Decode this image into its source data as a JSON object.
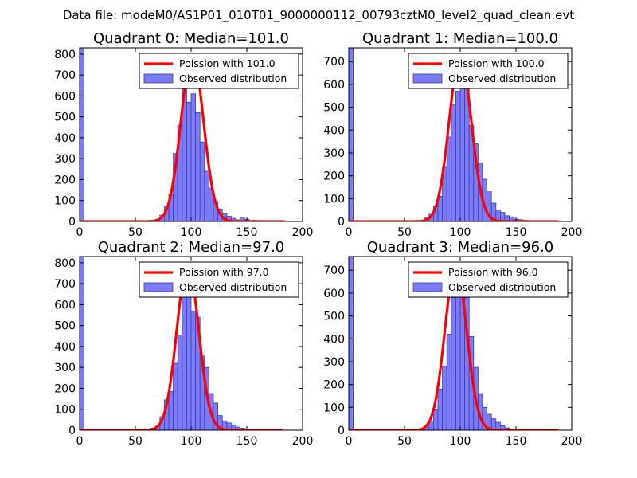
{
  "title": "Data file: modeM0/AS1P01_010T01_9000000112_00793cztM0_level2_quad_clean.evt",
  "colors": {
    "fit": "#ff0000",
    "hist_fill": "#7b7bf7",
    "hist_edge": "#3b3bb0",
    "axes": "#000000"
  },
  "chart_data": [
    {
      "type": "bar",
      "title": "Quadrant 0: Median=101.0",
      "median": 101,
      "peak": 800,
      "xlim": [
        0,
        200
      ],
      "ylim": [
        0,
        830
      ],
      "xticks": [
        0,
        50,
        100,
        150,
        200
      ],
      "yticks": [
        0,
        100,
        200,
        300,
        400,
        500,
        600,
        700,
        800
      ],
      "fit_end": 184,
      "legend": {
        "fit_label": "Poission with 101.0",
        "hist_label": "Observed distribution",
        "loc": "upper right"
      },
      "hist_edges": [
        0,
        4,
        8,
        12,
        16,
        20,
        24,
        28,
        32,
        36,
        40,
        44,
        48,
        52,
        56,
        60,
        64,
        68,
        72,
        76,
        80,
        84,
        88,
        92,
        96,
        100,
        104,
        108,
        112,
        116,
        120,
        124,
        128,
        132,
        136,
        140,
        144,
        148,
        152,
        156,
        160,
        164,
        168,
        172,
        176,
        180,
        184
      ],
      "hist_counts": [
        830,
        0,
        0,
        0,
        0,
        0,
        0,
        0,
        0,
        0,
        0,
        0,
        0,
        0,
        0,
        0,
        5,
        10,
        30,
        70,
        130,
        325,
        460,
        660,
        570,
        610,
        520,
        380,
        240,
        160,
        95,
        60,
        40,
        25,
        15,
        8,
        20,
        10,
        5,
        5,
        3,
        2,
        1,
        0,
        0,
        0
      ]
    },
    {
      "type": "bar",
      "title": "Quadrant 1: Median=100.0",
      "median": 100,
      "peak": 720,
      "xlim": [
        0,
        200
      ],
      "ylim": [
        0,
        760
      ],
      "xticks": [
        0,
        50,
        100,
        150,
        200
      ],
      "yticks": [
        0,
        100,
        200,
        300,
        400,
        500,
        600,
        700
      ],
      "fit_end": 188,
      "legend": {
        "fit_label": "Poission with 100.0",
        "hist_label": "Observed distribution",
        "loc": "upper right"
      },
      "hist_edges": [
        0,
        4,
        8,
        12,
        16,
        20,
        24,
        28,
        32,
        36,
        40,
        44,
        48,
        52,
        56,
        60,
        64,
        68,
        72,
        76,
        80,
        84,
        88,
        92,
        96,
        100,
        104,
        108,
        112,
        116,
        120,
        124,
        128,
        132,
        136,
        140,
        144,
        148,
        152,
        156,
        160,
        164,
        168,
        172,
        176,
        180,
        184,
        188
      ],
      "hist_counts": [
        760,
        0,
        0,
        0,
        0,
        0,
        0,
        0,
        0,
        0,
        0,
        0,
        0,
        0,
        0,
        0,
        5,
        15,
        35,
        65,
        110,
        240,
        370,
        510,
        570,
        660,
        610,
        420,
        340,
        255,
        185,
        130,
        80,
        50,
        40,
        25,
        20,
        10,
        8,
        5,
        3,
        2,
        1,
        0,
        0,
        0,
        0
      ]
    },
    {
      "type": "bar",
      "title": "Quadrant 2: Median=97.0",
      "median": 97,
      "peak": 790,
      "xlim": [
        0,
        200
      ],
      "ylim": [
        0,
        830
      ],
      "xticks": [
        0,
        50,
        100,
        150,
        200
      ],
      "yticks": [
        0,
        100,
        200,
        300,
        400,
        500,
        600,
        700,
        800
      ],
      "fit_end": 182,
      "legend": {
        "fit_label": "Poission with 97.0",
        "hist_label": "Observed distribution",
        "loc": "upper right"
      },
      "hist_edges": [
        0,
        4,
        8,
        12,
        16,
        20,
        24,
        28,
        32,
        36,
        40,
        44,
        48,
        52,
        56,
        60,
        64,
        68,
        72,
        76,
        80,
        84,
        88,
        92,
        96,
        100,
        104,
        108,
        112,
        116,
        120,
        124,
        128,
        132,
        136,
        140,
        144,
        148,
        152,
        156,
        160,
        164,
        168,
        172,
        176,
        180,
        182
      ],
      "hist_counts": [
        830,
        0,
        0,
        0,
        0,
        0,
        0,
        0,
        0,
        0,
        0,
        0,
        0,
        0,
        0,
        0,
        10,
        20,
        65,
        145,
        185,
        320,
        455,
        705,
        665,
        570,
        540,
        355,
        300,
        175,
        130,
        70,
        45,
        35,
        25,
        15,
        10,
        5,
        3,
        2,
        0,
        0,
        0,
        0,
        0,
        0
      ]
    },
    {
      "type": "bar",
      "title": "Quadrant 3: Median=96.0",
      "median": 96,
      "peak": 720,
      "xlim": [
        0,
        200
      ],
      "ylim": [
        0,
        760
      ],
      "xticks": [
        0,
        50,
        100,
        150,
        200
      ],
      "yticks": [
        0,
        100,
        200,
        300,
        400,
        500,
        600,
        700
      ],
      "fit_end": 188,
      "legend": {
        "fit_label": "Poission with 96.0",
        "hist_label": "Observed distribution",
        "loc": "upper right"
      },
      "hist_edges": [
        0,
        4,
        8,
        12,
        16,
        20,
        24,
        28,
        32,
        36,
        40,
        44,
        48,
        52,
        56,
        60,
        64,
        68,
        72,
        76,
        80,
        84,
        88,
        92,
        96,
        100,
        104,
        108,
        112,
        116,
        120,
        124,
        128,
        132,
        136,
        140,
        144,
        148,
        152,
        156,
        160,
        164,
        168,
        172,
        176,
        180,
        184,
        188
      ],
      "hist_counts": [
        760,
        0,
        0,
        0,
        0,
        0,
        0,
        0,
        0,
        0,
        0,
        0,
        0,
        0,
        0,
        0,
        5,
        15,
        40,
        90,
        180,
        280,
        420,
        580,
        700,
        660,
        580,
        410,
        275,
        160,
        100,
        70,
        50,
        35,
        20,
        10,
        5,
        3,
        2,
        0,
        0,
        0,
        0,
        0,
        0,
        0,
        0
      ]
    }
  ]
}
